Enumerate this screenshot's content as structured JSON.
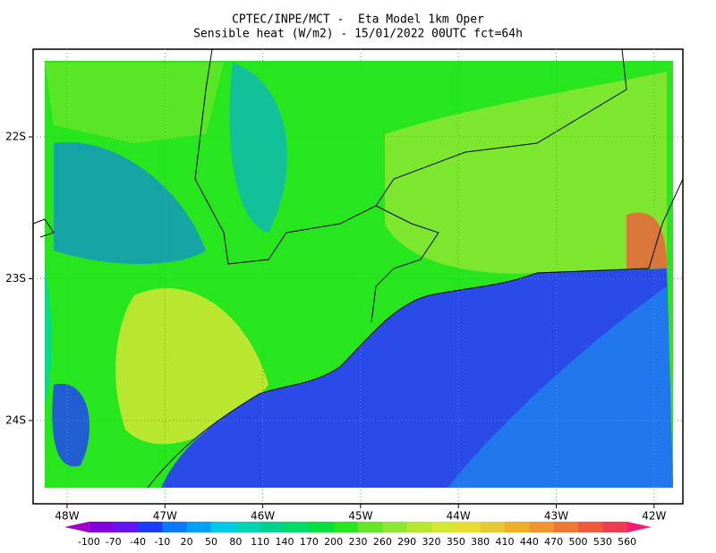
{
  "header": {
    "title": "CPTEC/INPE/MCT -  Eta Model 1km Oper",
    "subtitle": "Sensible heat (W/m2) - 15/01/2022 00UTC fct=64h"
  },
  "map": {
    "lon_labels": [
      "48W",
      "47W",
      "46W",
      "45W",
      "44W",
      "43W",
      "42W"
    ],
    "lat_labels": [
      "22S",
      "23S",
      "24S"
    ]
  },
  "colorbar": {
    "levels": [
      -100,
      -70,
      -40,
      -10,
      20,
      50,
      80,
      110,
      140,
      170,
      200,
      230,
      260,
      290,
      320,
      350,
      380,
      410,
      440,
      470,
      500,
      530,
      560
    ],
    "colors": [
      "#a000c8",
      "#8200dc",
      "#6414f0",
      "#1e3cff",
      "#0a78ff",
      "#00a0ff",
      "#00c8e6",
      "#00d2b4",
      "#00d28c",
      "#00dc64",
      "#00e13c",
      "#28e61e",
      "#64e628",
      "#8ce632",
      "#b4e632",
      "#d2e632",
      "#e6dc32",
      "#e6c832",
      "#f0af28",
      "#f0962d",
      "#f07832",
      "#f05a3c",
      "#f03c50",
      "#f01e78"
    ]
  }
}
